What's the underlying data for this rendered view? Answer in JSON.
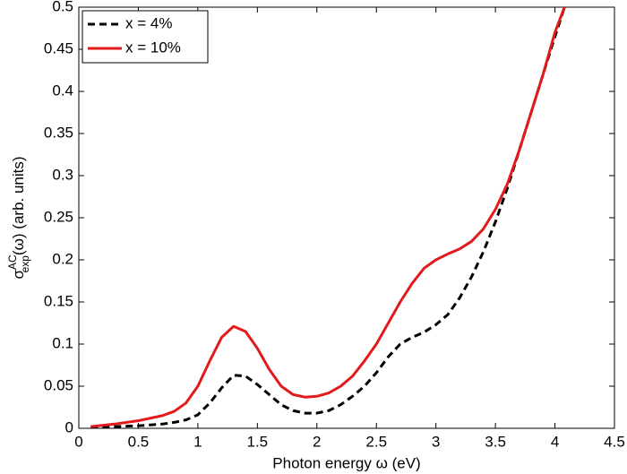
{
  "chart_data": {
    "type": "line",
    "xlabel": "Photon energy ω (eV)",
    "ylabel": {
      "symbol": "σ",
      "sup": "AC",
      "sub": "exp",
      "rest": "(ω) (arb. units)"
    },
    "x": [
      0.1,
      0.3,
      0.5,
      0.7,
      0.8,
      0.9,
      1.0,
      1.1,
      1.2,
      1.3,
      1.4,
      1.5,
      1.6,
      1.7,
      1.8,
      1.9,
      2.0,
      2.1,
      2.2,
      2.3,
      2.4,
      2.5,
      2.6,
      2.7,
      2.8,
      2.9,
      3.0,
      3.1,
      3.2,
      3.3,
      3.4,
      3.5,
      3.6,
      3.7,
      3.8,
      3.9,
      4.0,
      4.08
    ],
    "series": [
      {
        "name": "x = 4%",
        "color": "#000000",
        "dash": true,
        "values": [
          0.001,
          0.002,
          0.003,
          0.005,
          0.007,
          0.01,
          0.016,
          0.03,
          0.048,
          0.063,
          0.062,
          0.052,
          0.04,
          0.028,
          0.021,
          0.018,
          0.018,
          0.021,
          0.028,
          0.038,
          0.05,
          0.066,
          0.085,
          0.1,
          0.108,
          0.114,
          0.123,
          0.135,
          0.155,
          0.18,
          0.21,
          0.245,
          0.285,
          0.33,
          0.375,
          0.42,
          0.465,
          0.5
        ]
      },
      {
        "name": "x = 10%",
        "color": "#e31a1c",
        "dash": false,
        "values": [
          0.002,
          0.005,
          0.009,
          0.015,
          0.02,
          0.03,
          0.05,
          0.08,
          0.108,
          0.121,
          0.115,
          0.095,
          0.07,
          0.05,
          0.04,
          0.037,
          0.038,
          0.042,
          0.05,
          0.062,
          0.08,
          0.1,
          0.125,
          0.15,
          0.172,
          0.19,
          0.2,
          0.207,
          0.213,
          0.222,
          0.237,
          0.26,
          0.29,
          0.33,
          0.375,
          0.42,
          0.47,
          0.5
        ]
      }
    ],
    "xlim": [
      0,
      4.5
    ],
    "xticks": [
      0,
      0.5,
      1,
      1.5,
      2,
      2.5,
      3,
      3.5,
      4,
      4.5
    ],
    "ylim": [
      0,
      0.5
    ],
    "yticks": [
      0,
      0.05,
      0.1,
      0.15,
      0.2,
      0.25,
      0.3,
      0.35,
      0.4,
      0.45,
      0.5
    ],
    "grid": false,
    "legend": "upper-left"
  }
}
